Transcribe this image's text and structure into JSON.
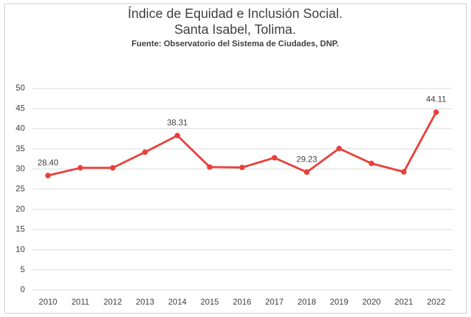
{
  "chart_data": {
    "type": "line",
    "title": "Índice de Equidad e Inclusión Social.",
    "subtitle": "Santa Isabel, Tolima.",
    "source": "Fuente: Observatorio del Sistema de Ciudades, DNP.",
    "categories": [
      "2010",
      "2011",
      "2012",
      "2013",
      "2014",
      "2015",
      "2016",
      "2017",
      "2018",
      "2019",
      "2020",
      "2021",
      "2022"
    ],
    "series": [
      {
        "name": "Índice",
        "color": "#e8413a",
        "values": [
          28.4,
          30.3,
          30.3,
          34.2,
          38.31,
          30.5,
          30.4,
          32.8,
          29.23,
          35.1,
          31.4,
          29.3,
          44.11
        ],
        "value_labels": [
          "28.40",
          null,
          null,
          null,
          "38.31",
          null,
          null,
          null,
          "29.23",
          null,
          null,
          null,
          "44.11"
        ]
      }
    ],
    "ylim": [
      0,
      50
    ],
    "yticks": [
      0,
      5,
      10,
      15,
      20,
      25,
      30,
      35,
      40,
      45,
      50
    ],
    "grid": true
  }
}
